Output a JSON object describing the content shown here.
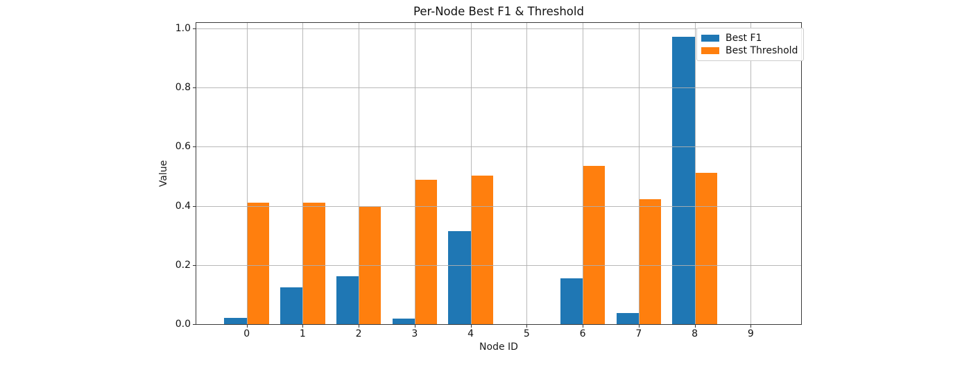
{
  "title": "Per-Node Best F1 & Threshold",
  "colors": {
    "series_blue": "#1f77b4",
    "series_orange": "#ff7f0e",
    "grid": "#b0b0b0",
    "spine": "#3a3a3a",
    "background": "#ffffff"
  },
  "chart_data": {
    "type": "bar",
    "title": "Per-Node Best F1 & Threshold",
    "xlabel": "Node ID",
    "ylabel": "Value",
    "categories": [
      0,
      1,
      2,
      3,
      4,
      5,
      6,
      7,
      8,
      9
    ],
    "series": [
      {
        "name": "Best F1",
        "color": "#1f77b4",
        "values": [
          0.022,
          0.125,
          0.163,
          0.018,
          0.315,
          0.0,
          0.155,
          0.037,
          0.972,
          0.0
        ]
      },
      {
        "name": "Best Threshold",
        "color": "#ff7f0e",
        "values": [
          0.411,
          0.411,
          0.397,
          0.487,
          0.503,
          0.0,
          0.534,
          0.423,
          0.511,
          0.0
        ]
      }
    ],
    "bar_width": 0.4,
    "xlim": [
      -0.9,
      9.9
    ],
    "ylim": [
      0,
      1.018
    ],
    "yticks": [
      "0.0",
      "0.2",
      "0.4",
      "0.6",
      "0.8",
      "1.0"
    ],
    "xticks": [
      "0",
      "1",
      "2",
      "3",
      "4",
      "5",
      "6",
      "7",
      "8",
      "9"
    ],
    "grid": true,
    "legend_position": "upper right"
  }
}
